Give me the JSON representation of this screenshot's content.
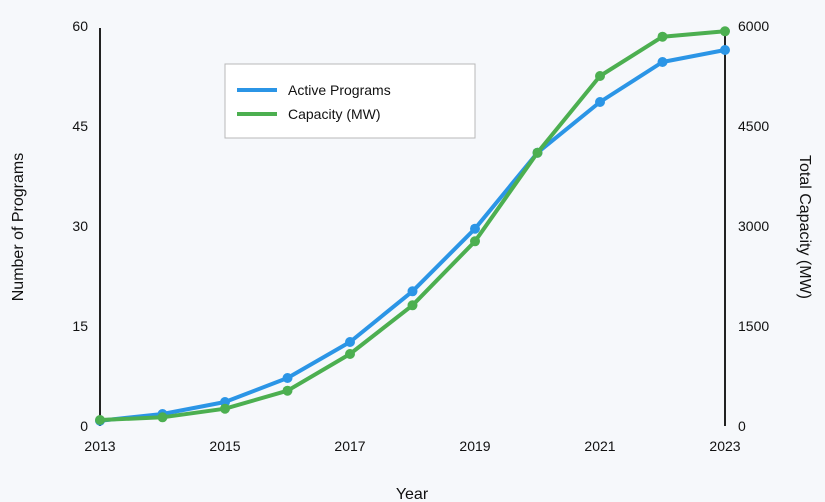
{
  "chart_data": {
    "type": "line",
    "x": [
      2013,
      2014,
      2015,
      2016,
      2017,
      2018,
      2019,
      2020,
      2021,
      2022,
      2023
    ],
    "x_tick_labels": [
      "2013",
      "2015",
      "2017",
      "2019",
      "2021",
      "2023"
    ],
    "xlabel": "Year",
    "ylabel_left": "Number of Programs",
    "ylabel_right": "Total Capacity (MW)",
    "ylim_left": [
      0,
      60
    ],
    "ylim_right": [
      0,
      6000
    ],
    "y_ticks_left": [
      "0",
      "15",
      "30",
      "45",
      "60"
    ],
    "y_ticks_right": [
      "0",
      "1500",
      "3000",
      "4500",
      "6000"
    ],
    "grid": false,
    "legend_position": "top-left inside",
    "series": [
      {
        "name": "Active Programs",
        "axis": "left",
        "color": "#2b95e6",
        "values": [
          0.8,
          1.8,
          3.6,
          7.2,
          12.6,
          20.2,
          29.6,
          41.0,
          48.6,
          54.6,
          56.4
        ]
      },
      {
        "name": "Capacity (MW)",
        "axis": "right",
        "color": "#4caf50",
        "values": [
          90,
          130,
          260,
          530,
          1080,
          1810,
          2770,
          4100,
          5250,
          5840,
          5920
        ]
      }
    ]
  }
}
